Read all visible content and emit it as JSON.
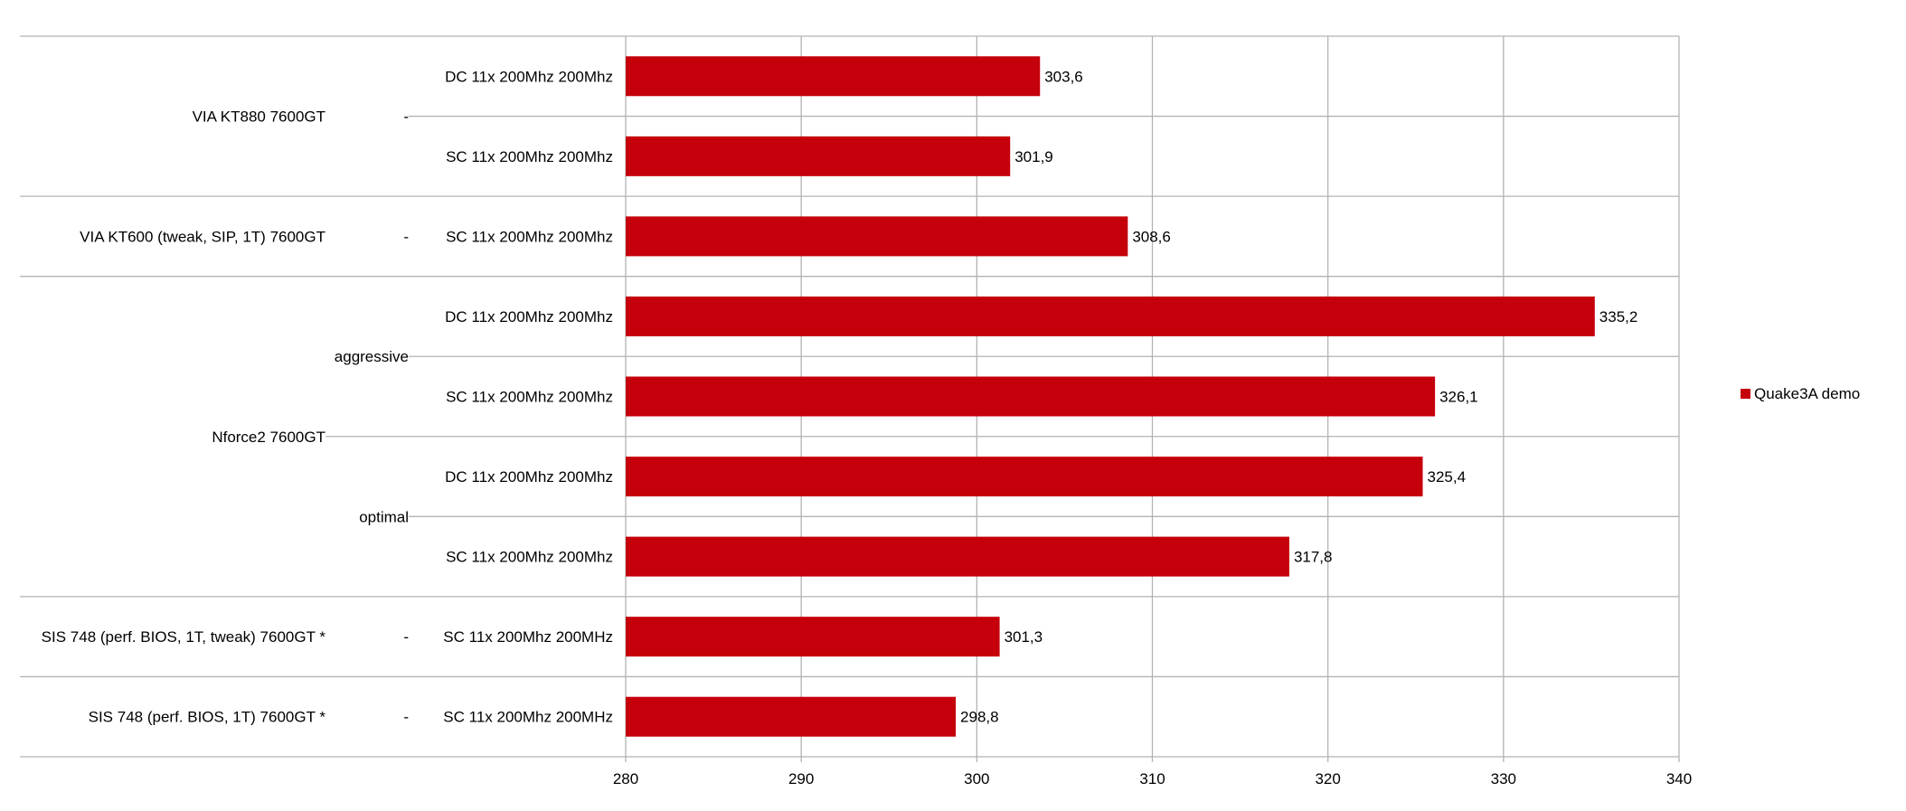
{
  "chart_data": {
    "type": "bar",
    "orientation": "horizontal",
    "xlim": [
      280,
      340
    ],
    "x_ticks": [
      "280",
      "290",
      "300",
      "310",
      "320",
      "330",
      "340"
    ],
    "grid": true,
    "legend_position": "right",
    "series": [
      {
        "name": "Quake3A demo",
        "color": "#c5000b"
      }
    ],
    "bars": [
      {
        "label": "DC  11x  200Mhz  200Mhz",
        "value": 303.6,
        "value_label": "303,6"
      },
      {
        "label": "SC  11x  200Mhz  200Mhz",
        "value": 301.9,
        "value_label": "301,9"
      },
      {
        "label": "SC  11x  200Mhz  200Mhz",
        "value": 308.6,
        "value_label": "308,6"
      },
      {
        "label": "DC  11x  200Mhz  200Mhz",
        "value": 335.2,
        "value_label": "335,2"
      },
      {
        "label": "SC  11x  200Mhz  200Mhz",
        "value": 326.1,
        "value_label": "326,1"
      },
      {
        "label": "DC  11x  200Mhz  200Mhz",
        "value": 325.4,
        "value_label": "325,4"
      },
      {
        "label": "SC  11x  200Mhz  200Mhz",
        "value": 317.8,
        "value_label": "317,8"
      },
      {
        "label": "SC  11x  200Mhz  200MHz",
        "value": 301.3,
        "value_label": "301,3"
      },
      {
        "label": "SC  11x  200Mhz  200MHz",
        "value": 298.8,
        "value_label": "298,8"
      }
    ],
    "sub_groups": [
      {
        "label": "-",
        "bars": [
          0,
          1
        ]
      },
      {
        "label": "-",
        "bars": [
          2,
          2
        ]
      },
      {
        "label": "aggressive",
        "bars": [
          3,
          4
        ]
      },
      {
        "label": "optimal",
        "bars": [
          5,
          6
        ]
      },
      {
        "label": "-",
        "bars": [
          7,
          7
        ]
      },
      {
        "label": "-",
        "bars": [
          8,
          8
        ]
      }
    ],
    "groups": [
      {
        "label": "VIA KT880     7600GT",
        "bars": [
          0,
          1
        ]
      },
      {
        "label": "VIA KT600 (tweak,  SIP,  1T)     7600GT",
        "bars": [
          2,
          2
        ]
      },
      {
        "label": "Nforce2     7600GT",
        "bars": [
          3,
          6
        ]
      },
      {
        "label": "SIS 748 (perf. BIOS, 1T,  tweak)   7600GT *",
        "bars": [
          7,
          7
        ]
      },
      {
        "label": "SIS 748 (perf. BIOS,  1T)   7600GT *",
        "bars": [
          8,
          8
        ]
      }
    ]
  }
}
